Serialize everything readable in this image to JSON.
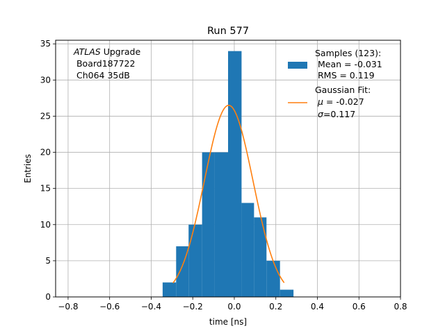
{
  "chart_data": {
    "type": "bar",
    "title": "Run 577",
    "xlabel": "time [ns]",
    "ylabel": "Entries",
    "xlim": [
      -0.86,
      0.8
    ],
    "ylim": [
      0,
      35.5
    ],
    "xticks": [
      -0.8,
      -0.6,
      -0.4,
      -0.2,
      0.0,
      0.2,
      0.4,
      0.6,
      0.8
    ],
    "xtick_labels": [
      "−0.8",
      "−0.6",
      "−0.4",
      "−0.2",
      "0.0",
      "0.2",
      "0.4",
      "0.6",
      "0.8"
    ],
    "yticks": [
      0,
      5,
      10,
      15,
      20,
      25,
      30,
      35
    ],
    "ytick_labels": [
      "0",
      "5",
      "10",
      "15",
      "20",
      "25",
      "30",
      "35"
    ],
    "grid": true,
    "histogram": {
      "bin_edges": [
        -0.345,
        -0.28,
        -0.22,
        -0.155,
        -0.095,
        -0.03,
        0.035,
        0.095,
        0.155,
        0.22,
        0.285
      ],
      "counts": [
        2,
        7,
        10,
        20,
        20,
        34,
        13,
        11,
        5,
        1
      ],
      "color": "#1f77b4"
    },
    "fit": {
      "type": "gaussian",
      "mu": -0.027,
      "sigma": 0.117,
      "amplitude": 26.5,
      "x_range": [
        -0.295,
        0.24
      ],
      "color": "#ff7f0e"
    },
    "annotation": {
      "italic": "ATLAS",
      "rest": " Upgrade",
      "line2": " Board187722",
      "line3": " Ch064 35dB"
    },
    "legend": {
      "placement": "top-right",
      "samples": [
        "Samples (123):",
        " Mean = -0.031",
        " RMS = 0.119"
      ],
      "fit_title": "Gaussian Fit:",
      "fit_mu": " = -0.027",
      "fit_sigma": "=0.117"
    }
  }
}
